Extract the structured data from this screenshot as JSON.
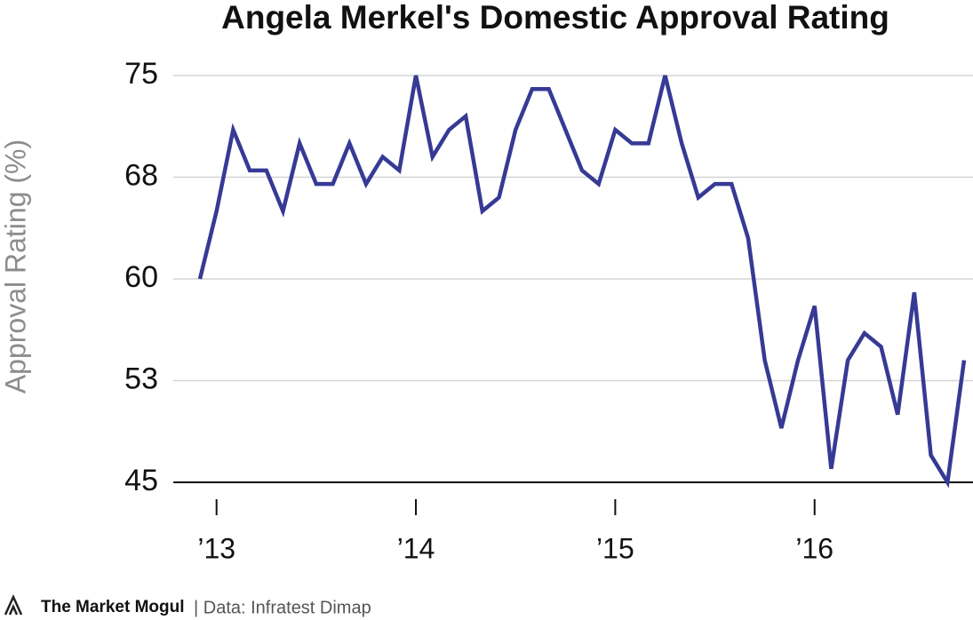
{
  "chart_data": {
    "type": "line",
    "title": "Angela Merkel's Domestic Approval Rating",
    "y_label": "Approval Rating (%)",
    "categories": [
      null,
      "’13",
      null,
      null,
      null,
      null,
      null,
      null,
      null,
      null,
      null,
      null,
      null,
      "’14",
      null,
      null,
      null,
      null,
      null,
      null,
      null,
      null,
      null,
      null,
      null,
      "’15",
      null,
      null,
      null,
      null,
      null,
      null,
      null,
      null,
      null,
      null,
      null,
      "’16",
      null,
      null,
      null,
      null,
      null,
      null,
      null,
      null,
      null
    ],
    "series": [
      {
        "name": "Approval Rating",
        "color": "#363a95",
        "values": [
          60,
          65,
          71,
          68,
          68,
          65,
          70,
          67,
          67,
          70,
          67,
          69,
          68,
          75,
          69,
          71,
          72,
          65,
          66,
          71,
          74,
          74,
          71,
          68,
          67,
          71,
          70,
          70,
          75,
          70,
          66,
          67,
          67,
          63,
          54,
          49,
          54,
          58,
          46,
          54,
          56,
          55,
          50,
          59,
          47,
          45,
          54
        ]
      }
    ],
    "ylim": [
      45,
      75
    ],
    "yticks": [
      45,
      {
        "value": 52.5,
        "label": "53"
      },
      60,
      {
        "value": 67.5,
        "label": "68"
      },
      75
    ],
    "grid": true,
    "brand": "The Market Mogul",
    "source": "| Data: Infratest Dimap"
  }
}
